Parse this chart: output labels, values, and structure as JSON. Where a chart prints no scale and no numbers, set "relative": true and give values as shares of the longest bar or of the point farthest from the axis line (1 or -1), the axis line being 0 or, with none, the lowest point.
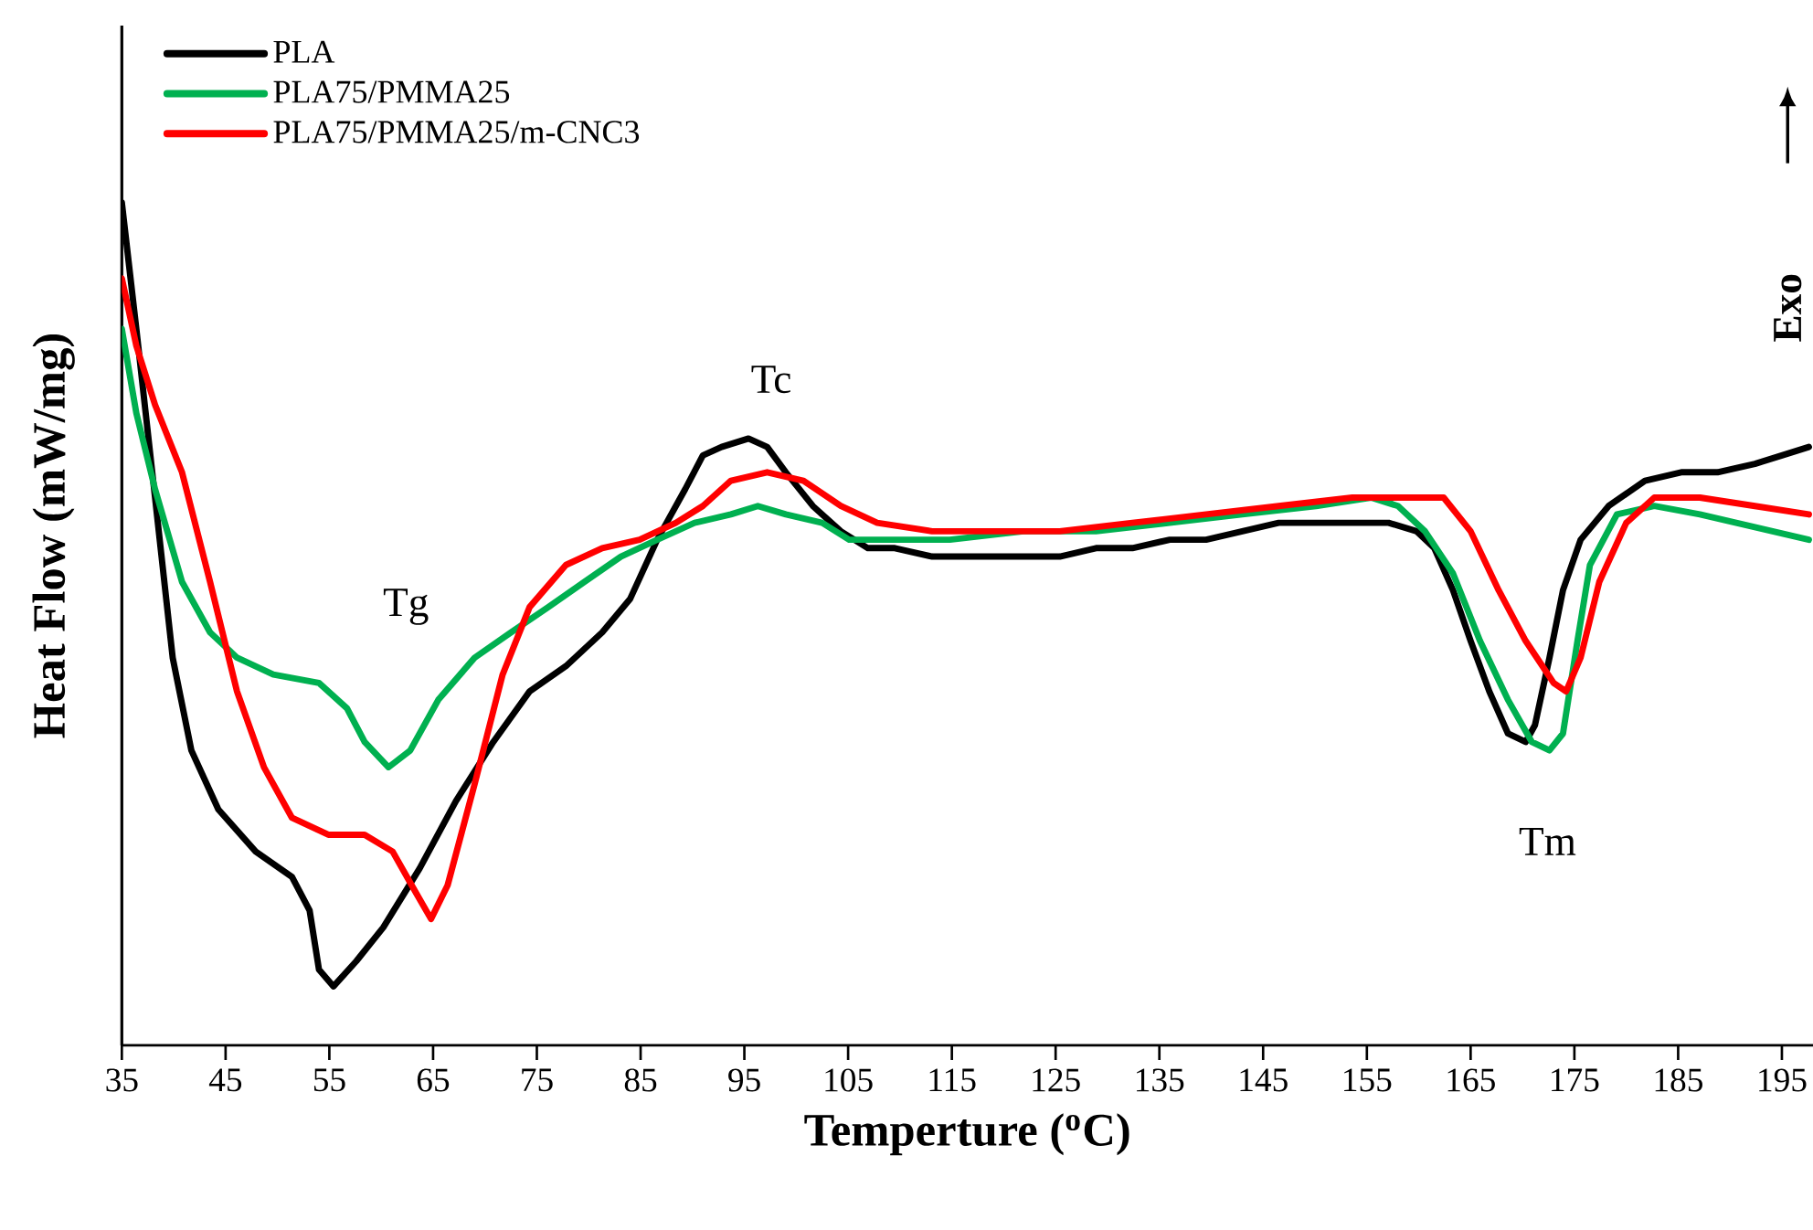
{
  "chart_data": {
    "type": "line",
    "relative": true,
    "xlabel": "Temperture ($^{o}$C)",
    "ylabel": "Heat Flow (mW/mg)",
    "xlim": [
      35,
      198
    ],
    "xticks": [
      35,
      45,
      55,
      65,
      75,
      85,
      95,
      105,
      115,
      125,
      135,
      145,
      155,
      165,
      175,
      185,
      195
    ],
    "tick_labels": "x",
    "grid": false,
    "legend": "top left",
    "marker": "none",
    "line_style": "solid",
    "annotations": [
      "Tg",
      "Tc",
      "Tm",
      "Exo"
    ],
    "series": [
      {
        "name": "PLA",
        "color": "#000000",
        "x": [
          35,
          36.4,
          38.2,
          39.9,
          41.7,
          44.3,
          47.9,
          51.4,
          53.1,
          54.0,
          55.4,
          57.6,
          60.2,
          63.7,
          67.2,
          70.8,
          74.3,
          77.8,
          81.3,
          84.0,
          86.6,
          89.3,
          91.0,
          92.8,
          95.4,
          97.2,
          99.0,
          101.6,
          104.3,
          106.9,
          109.5,
          113.1,
          118.3,
          121.9,
          125.4,
          128.9,
          132.4,
          136.0,
          139.5,
          143.0,
          146.5,
          151.8,
          157.1,
          159.8,
          161.5,
          163.3,
          165.0,
          166.8,
          168.6,
          170.3,
          171.2,
          172.6,
          173.9,
          175.6,
          178.3,
          181.8,
          185.3,
          188.8,
          192.4,
          195.0,
          197.6
        ],
        "values": [
          1.0,
          0.85,
          0.65,
          0.46,
          0.35,
          0.28,
          0.23,
          0.2,
          0.16,
          0.09,
          0.07,
          0.1,
          0.14,
          0.21,
          0.29,
          0.36,
          0.42,
          0.45,
          0.49,
          0.53,
          0.6,
          0.66,
          0.7,
          0.71,
          0.72,
          0.71,
          0.68,
          0.64,
          0.61,
          0.59,
          0.59,
          0.58,
          0.58,
          0.58,
          0.58,
          0.59,
          0.59,
          0.6,
          0.6,
          0.61,
          0.62,
          0.62,
          0.62,
          0.61,
          0.59,
          0.54,
          0.48,
          0.42,
          0.37,
          0.36,
          0.38,
          0.46,
          0.54,
          0.6,
          0.64,
          0.67,
          0.68,
          0.68,
          0.69,
          0.7,
          0.71
        ]
      },
      {
        "name": "PLA75/PMMA25",
        "color": "#00b050",
        "x": [
          35,
          36.4,
          38.2,
          40.8,
          43.5,
          46.1,
          49.6,
          54.0,
          56.7,
          58.4,
          60.7,
          62.8,
          65.5,
          69.0,
          72.5,
          76.1,
          79.6,
          83.1,
          86.6,
          90.2,
          93.7,
          96.3,
          99.0,
          102.5,
          105.1,
          109.5,
          114.8,
          121.9,
          128.9,
          136.0,
          143.0,
          150.1,
          155.4,
          158.0,
          160.6,
          163.3,
          165.9,
          168.6,
          170.9,
          172.6,
          173.9,
          175.3,
          176.5,
          179.1,
          182.7,
          187.1,
          190.6,
          194.1,
          197.6
        ],
        "values": [
          0.85,
          0.75,
          0.66,
          0.55,
          0.49,
          0.46,
          0.44,
          0.43,
          0.4,
          0.36,
          0.33,
          0.35,
          0.41,
          0.46,
          0.49,
          0.52,
          0.55,
          0.58,
          0.6,
          0.62,
          0.63,
          0.64,
          0.63,
          0.62,
          0.6,
          0.6,
          0.6,
          0.61,
          0.61,
          0.62,
          0.63,
          0.64,
          0.65,
          0.64,
          0.61,
          0.56,
          0.48,
          0.41,
          0.36,
          0.35,
          0.37,
          0.48,
          0.57,
          0.63,
          0.64,
          0.63,
          0.62,
          0.61,
          0.6
        ]
      },
      {
        "name": "PLA75/PMMA25/m-CNC3",
        "color": "#ff0000",
        "x": [
          35,
          36.4,
          38.2,
          40.8,
          43.5,
          46.1,
          48.7,
          51.4,
          54.9,
          58.4,
          61.1,
          63.4,
          64.8,
          66.4,
          69.0,
          71.7,
          74.3,
          77.8,
          81.3,
          84.9,
          88.4,
          91.0,
          93.7,
          97.2,
          100.7,
          104.3,
          107.8,
          113.1,
          118.3,
          125.4,
          132.4,
          139.5,
          146.5,
          153.6,
          158.9,
          162.4,
          165.0,
          167.7,
          170.3,
          173.0,
          174.2,
          175.6,
          177.4,
          180.0,
          182.7,
          187.1,
          192.4,
          197.6
        ],
        "values": [
          0.91,
          0.83,
          0.76,
          0.68,
          0.55,
          0.42,
          0.33,
          0.27,
          0.25,
          0.25,
          0.23,
          0.18,
          0.15,
          0.19,
          0.31,
          0.44,
          0.52,
          0.57,
          0.59,
          0.6,
          0.62,
          0.64,
          0.67,
          0.68,
          0.67,
          0.64,
          0.62,
          0.61,
          0.61,
          0.61,
          0.62,
          0.63,
          0.64,
          0.65,
          0.65,
          0.65,
          0.61,
          0.54,
          0.48,
          0.43,
          0.42,
          0.46,
          0.55,
          0.62,
          0.65,
          0.65,
          0.64,
          0.63
        ]
      }
    ]
  }
}
